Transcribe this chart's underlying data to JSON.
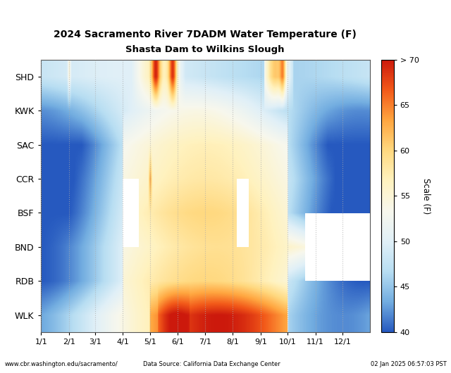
{
  "title_line1": "2024 Sacramento River 7DADM Water Temperature (F)",
  "title_line2": "Shasta Dam to Wilkins Slough",
  "locations": [
    "SHD",
    "KWK",
    "SAC",
    "CCR",
    "BSF",
    "BND",
    "RDB",
    "WLK"
  ],
  "month_labels": [
    "1/1",
    "2/1",
    "3/1",
    "4/1",
    "5/1",
    "6/1",
    "7/1",
    "8/1",
    "9/1",
    "10/1",
    "11/1",
    "12/1"
  ],
  "month_day_offsets": [
    0,
    31,
    60,
    91,
    121,
    152,
    182,
    213,
    244,
    274,
    305,
    335
  ],
  "colorbar_label": "Scale (F)",
  "colorbar_ticks": [
    40,
    45,
    50,
    55,
    60,
    65,
    70
  ],
  "colorbar_tick_labels": [
    "40",
    "45",
    "50",
    "55",
    "60",
    "65",
    "> 70"
  ],
  "vmin": 40,
  "vmax": 70,
  "footer_left": "www.cbr.washington.edu/sacramento/",
  "footer_center": "Data Source: California Data Exchange Center",
  "footer_right": "02 Jan 2025 06:57:03 PST",
  "background_color": "#ffffff",
  "grid_color": "#aaaaaa",
  "grid_style": ":"
}
